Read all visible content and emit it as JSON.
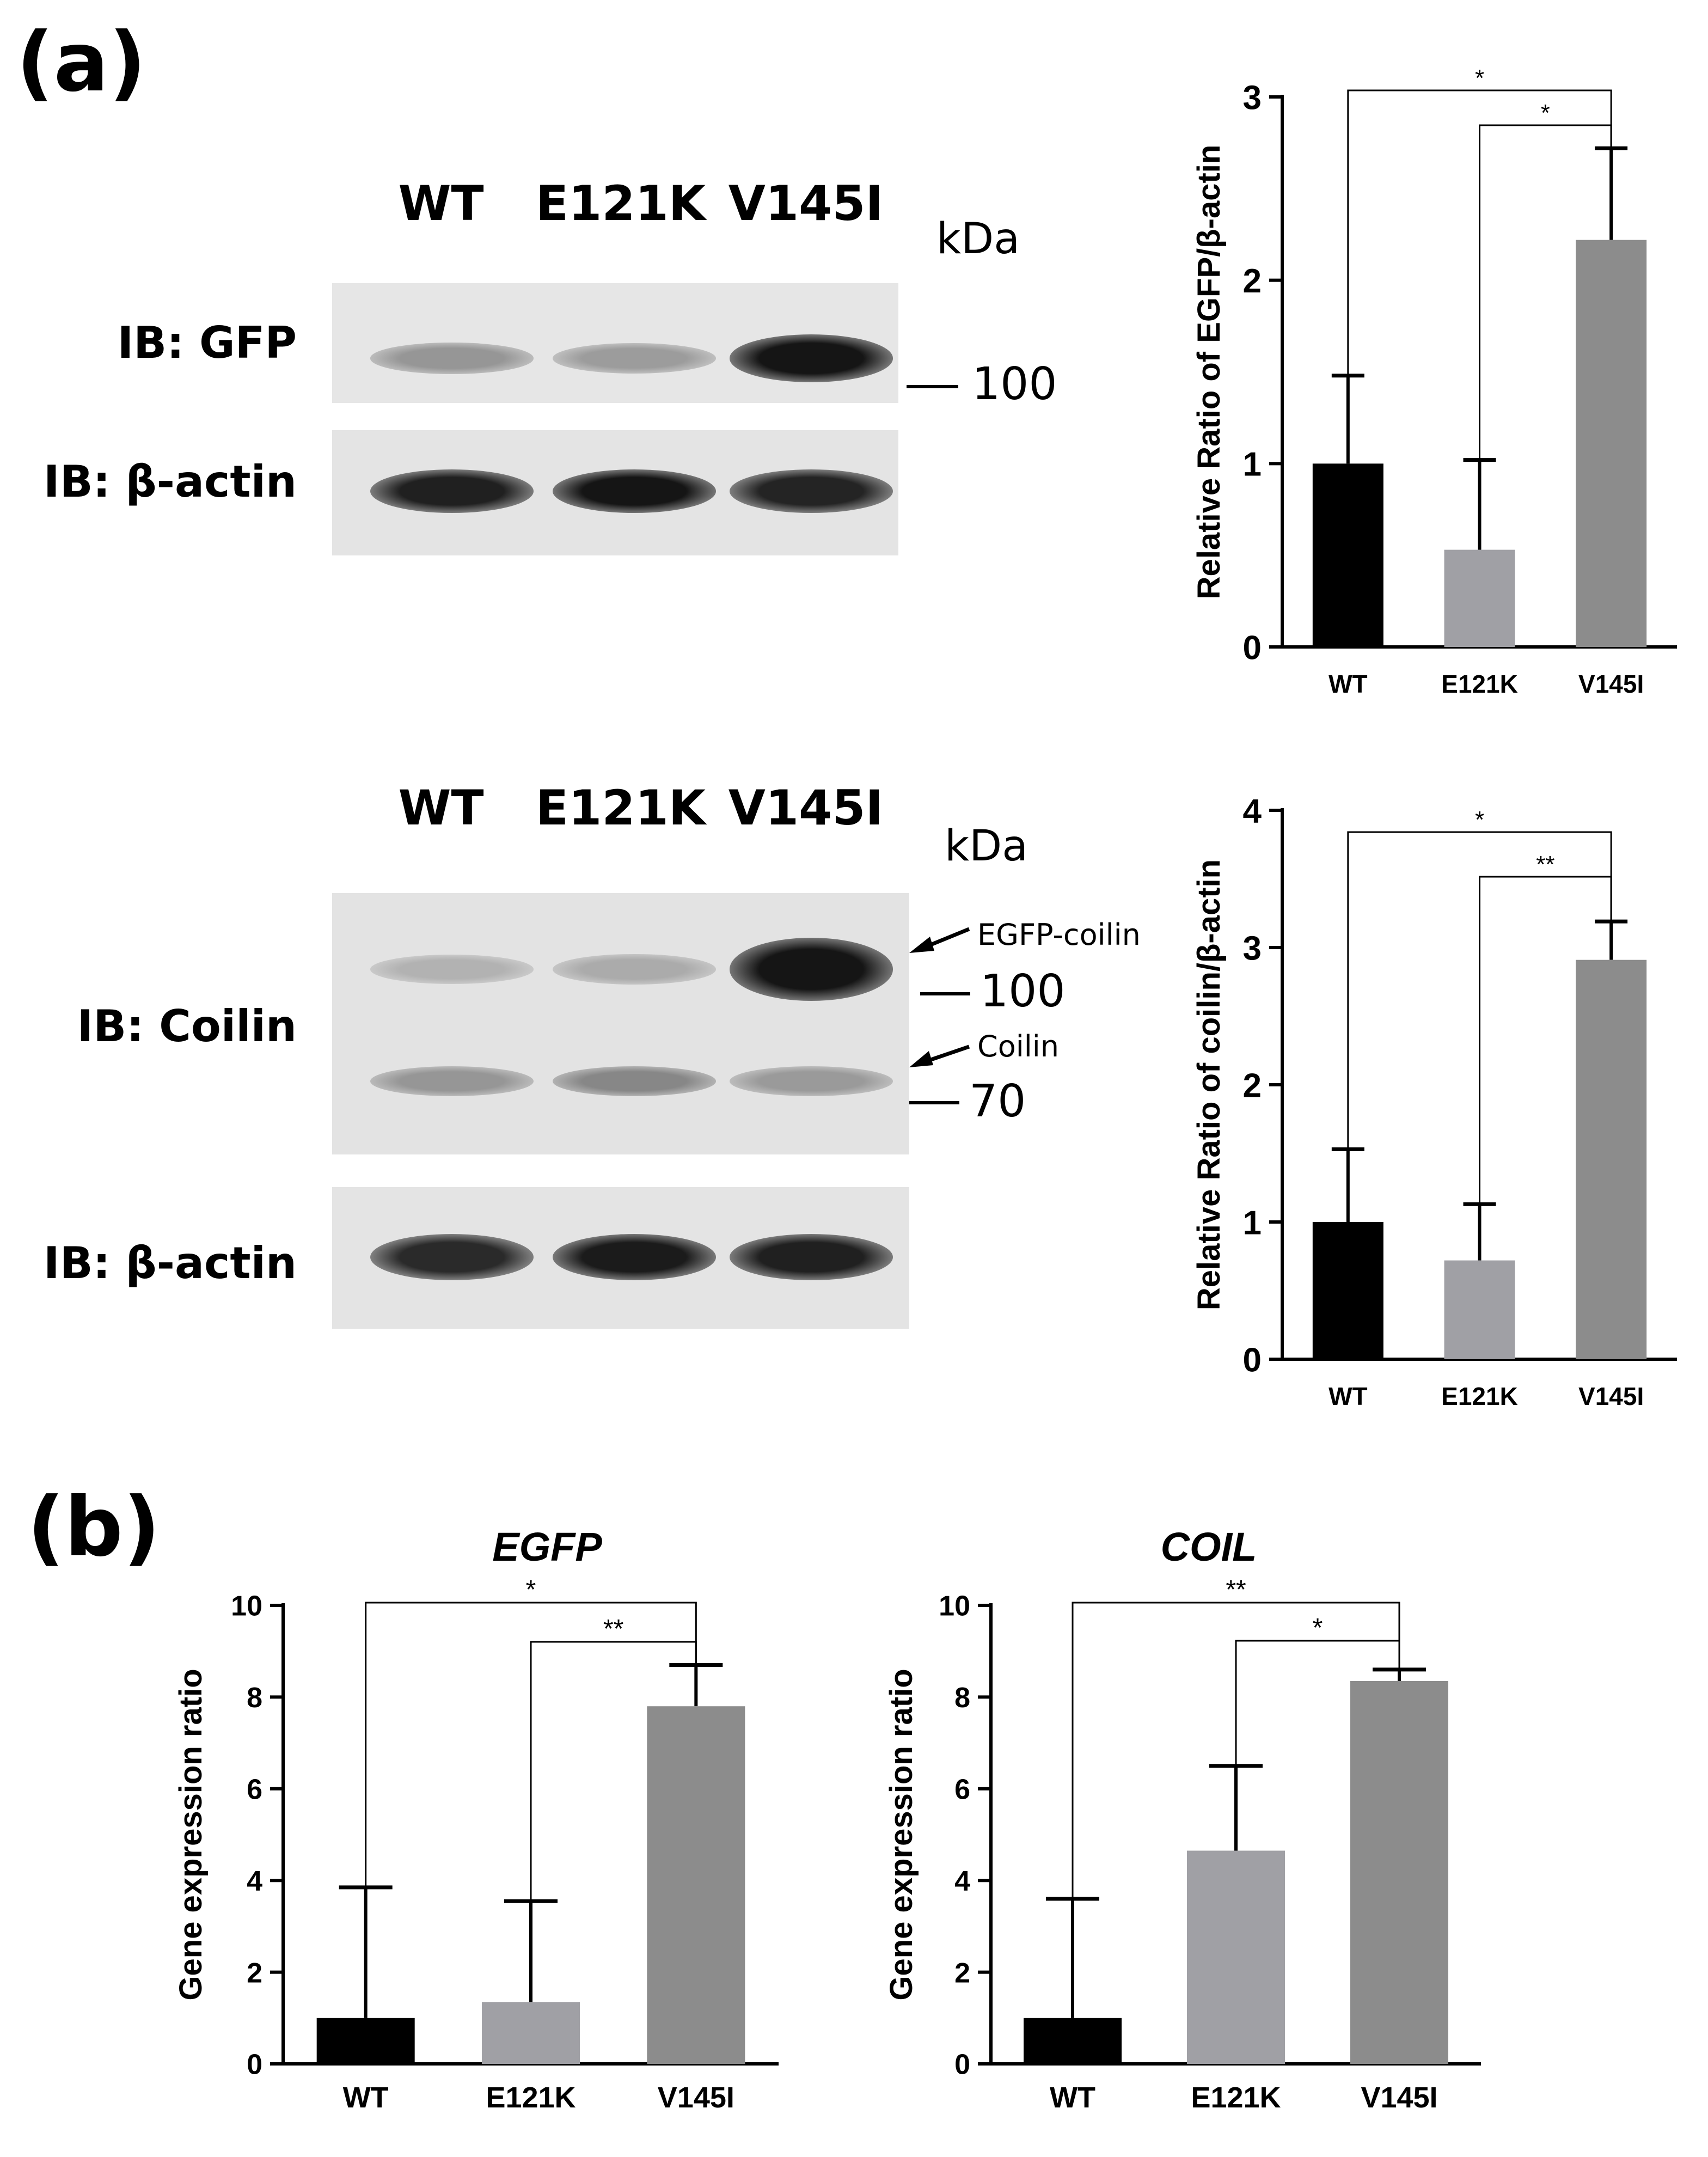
{
  "panel_a": {
    "letter": "(a)",
    "blot1": {
      "lanes": [
        "WT",
        "E121K",
        "V145I"
      ],
      "kda_label": "kDa",
      "ib_top": "IB: GFP",
      "ib_bottom": "IB: β-actin",
      "marker_100": "100",
      "top_band_intensity": [
        0.35,
        0.32,
        0.95
      ],
      "bottom_band_intensity": [
        0.9,
        0.95,
        0.88
      ]
    },
    "blot2": {
      "lanes": [
        "WT",
        "E121K",
        "V145I"
      ],
      "kda_label": "kDa",
      "ib_top": "IB: Coilin",
      "ib_bottom": "IB: β-actin",
      "arrow_egfp_coilin": "EGFP-coilin",
      "arrow_coilin": "Coilin",
      "marker_100": "100",
      "marker_70": "70",
      "egfp_coilin_band_intensity": [
        0.22,
        0.25,
        0.95
      ],
      "coilin_band_intensity": [
        0.35,
        0.42,
        0.33
      ],
      "bottom_band_intensity": [
        0.85,
        0.92,
        0.9
      ]
    }
  },
  "panel_b": {
    "letter": "(b)"
  },
  "chart_data": [
    {
      "id": "a1",
      "type": "bar",
      "categories": [
        "WT",
        "E121K",
        "V145I"
      ],
      "values": [
        1.0,
        0.53,
        2.22
      ],
      "errors": [
        0.48,
        0.49,
        0.5
      ],
      "colors": [
        "#000000",
        "#a0a0a5",
        "#8c8c8c"
      ],
      "title": "",
      "xlabel": "",
      "ylabel": "Relative Ratio of EGFP/β-actin",
      "ylim": [
        0,
        3
      ],
      "yticks": [
        "0",
        "1",
        "2",
        "3"
      ],
      "significance": [
        {
          "from": "WT",
          "to": "V145I",
          "label": "*"
        },
        {
          "from": "E121K",
          "to": "V145I",
          "label": "*"
        }
      ]
    },
    {
      "id": "a2",
      "type": "bar",
      "categories": [
        "WT",
        "E121K",
        "V145I"
      ],
      "values": [
        1.0,
        0.72,
        2.91
      ],
      "errors": [
        0.53,
        0.41,
        0.28
      ],
      "colors": [
        "#000000",
        "#a0a0a5",
        "#8c8c8c"
      ],
      "title": "",
      "xlabel": "",
      "ylabel": "Relative Ratio of coilin/β-actin",
      "ylim": [
        0,
        4
      ],
      "yticks": [
        "0",
        "1",
        "2",
        "3",
        "4"
      ],
      "significance": [
        {
          "from": "WT",
          "to": "V145I",
          "label": "*"
        },
        {
          "from": "E121K",
          "to": "V145I",
          "label": "**"
        }
      ]
    },
    {
      "id": "b1",
      "type": "bar",
      "categories": [
        "WT",
        "E121K",
        "V145I"
      ],
      "values": [
        1.0,
        1.35,
        7.8
      ],
      "errors": [
        2.85,
        2.2,
        0.9
      ],
      "colors": [
        "#000000",
        "#a0a0a5",
        "#8c8c8c"
      ],
      "title": "EGFP",
      "xlabel": "",
      "ylabel": "Gene expression ratio",
      "ylim": [
        0,
        10
      ],
      "yticks": [
        "0",
        "2",
        "4",
        "6",
        "8",
        "10"
      ],
      "significance": [
        {
          "from": "WT",
          "to": "V145I",
          "label": "*"
        },
        {
          "from": "E121K",
          "to": "V145I",
          "label": "**"
        }
      ]
    },
    {
      "id": "b2",
      "type": "bar",
      "categories": [
        "WT",
        "E121K",
        "V145I"
      ],
      "values": [
        1.0,
        4.65,
        8.35
      ],
      "errors": [
        2.6,
        1.85,
        0.25
      ],
      "colors": [
        "#000000",
        "#a0a0a5",
        "#8c8c8c"
      ],
      "title": "COIL",
      "xlabel": "",
      "ylabel": "Gene expression ratio",
      "ylim": [
        0,
        10
      ],
      "yticks": [
        "0",
        "2",
        "4",
        "6",
        "8",
        "10"
      ],
      "significance": [
        {
          "from": "WT",
          "to": "V145I",
          "label": "**"
        },
        {
          "from": "E121K",
          "to": "V145I",
          "label": "*"
        }
      ]
    }
  ]
}
